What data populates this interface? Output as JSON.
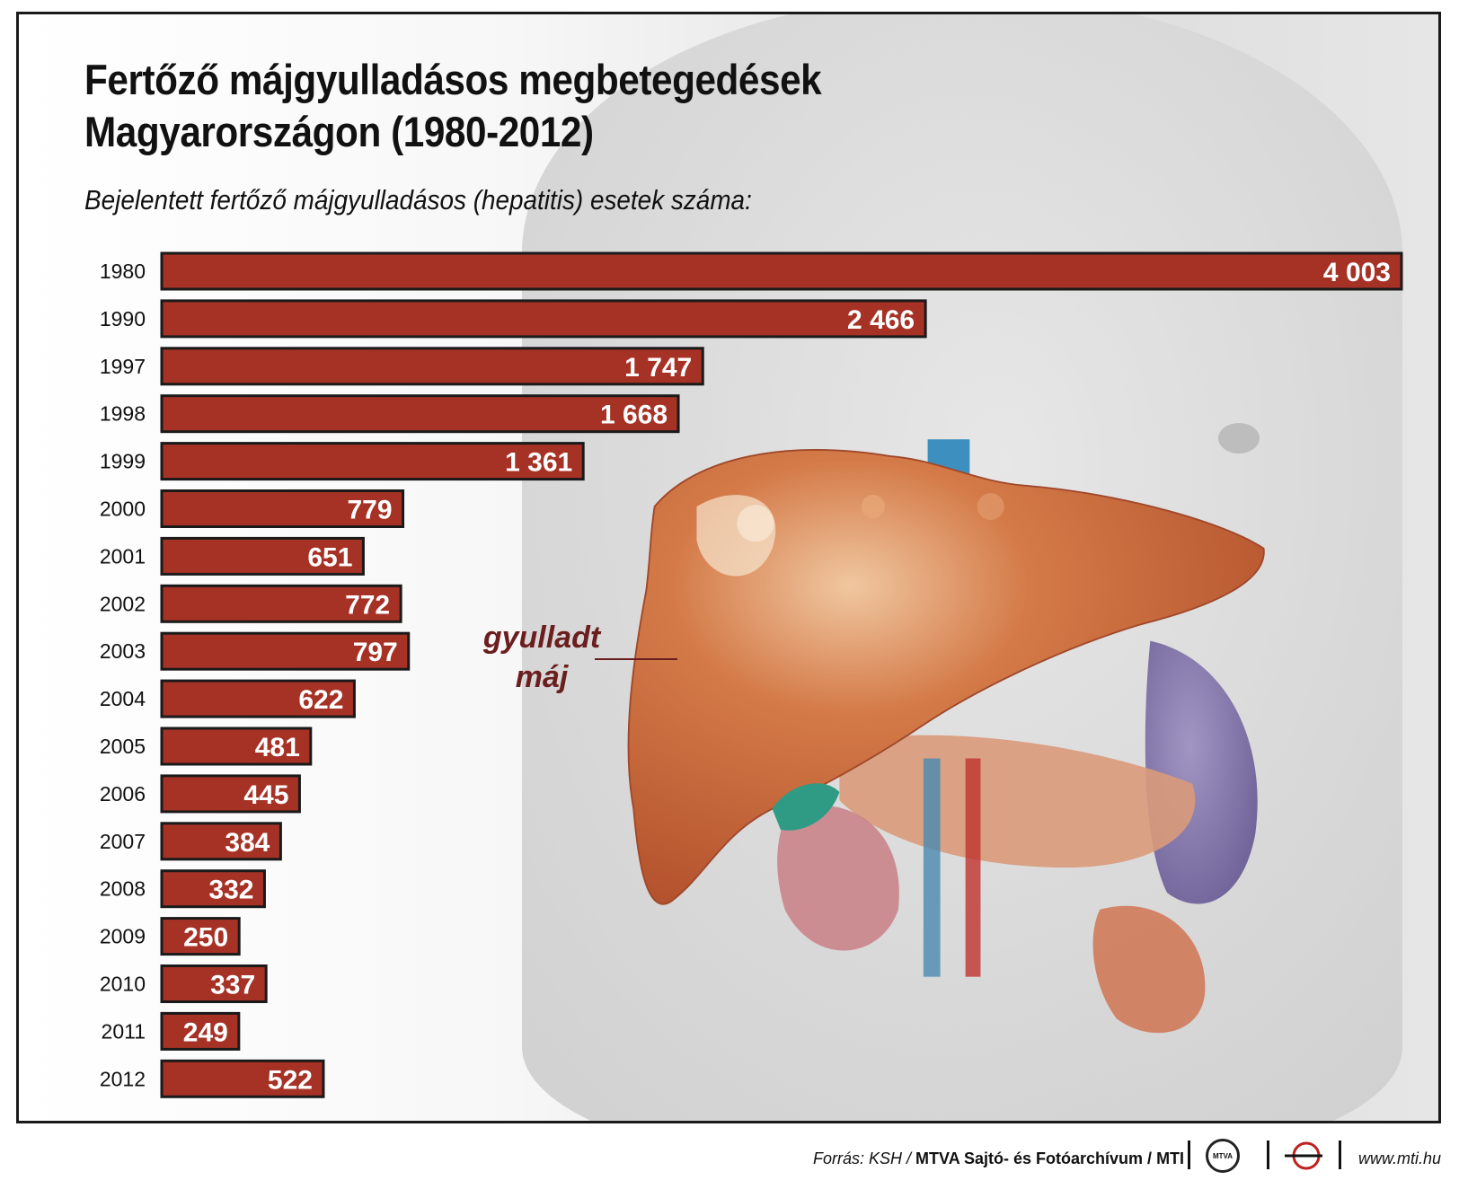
{
  "header": {
    "title_line1": "Fertőző májgyulladásos megbetegedések",
    "title_line2": "Magyarországon (1980-2012)",
    "subtitle": "Bejelentett fertőző májgyulladásos (hepatitis) esetek száma:"
  },
  "annotation": {
    "line1": "gyulladt",
    "line2": "máj"
  },
  "footer": {
    "source_prefix": "Forrás: KSH / ",
    "source_org": "MTVA Sajtó- és Fotóarchívum / MTI",
    "badge_text": "MTVA",
    "url": "www.mti.hu"
  },
  "colors": {
    "bar": "#a63226",
    "bar_border": "#1a1a1a",
    "annotation": "#6b1e1e"
  },
  "chart_data": {
    "type": "bar",
    "orientation": "horizontal",
    "title": "Fertőző májgyulladásos megbetegedések Magyarországon (1980-2012)",
    "subtitle": "Bejelentett fertőző májgyulladásos (hepatitis) esetek száma:",
    "categories": [
      "1980",
      "1990",
      "1997",
      "1998",
      "1999",
      "2000",
      "2001",
      "2002",
      "2003",
      "2004",
      "2005",
      "2006",
      "2007",
      "2008",
      "2009",
      "2010",
      "2011",
      "2012"
    ],
    "values": [
      4003,
      2466,
      1747,
      1668,
      1361,
      779,
      651,
      772,
      797,
      622,
      481,
      445,
      384,
      332,
      250,
      337,
      249,
      522
    ],
    "labels": [
      "4 003",
      "2 466",
      "1 747",
      "1 668",
      "1 361",
      "779",
      "651",
      "772",
      "797",
      "622",
      "481",
      "445",
      "384",
      "332",
      "250",
      "337",
      "249",
      "522"
    ],
    "xlim": [
      0,
      4003
    ],
    "grid": false,
    "legend": "none"
  }
}
